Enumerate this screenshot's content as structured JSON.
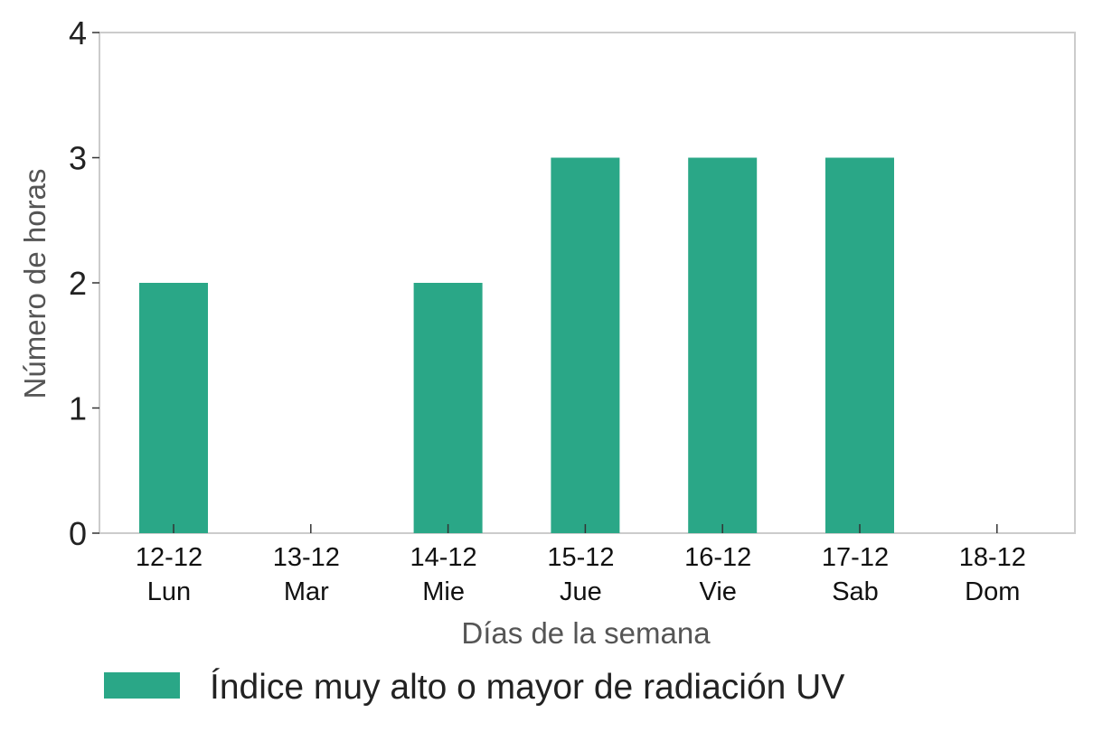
{
  "chart_data": {
    "type": "bar",
    "categories": [
      {
        "date": "12-12",
        "day": "Lun"
      },
      {
        "date": "13-12",
        "day": "Mar"
      },
      {
        "date": "14-12",
        "day": "Mie"
      },
      {
        "date": "15-12",
        "day": "Jue"
      },
      {
        "date": "16-12",
        "day": "Vie"
      },
      {
        "date": "17-12",
        "day": "Sab"
      },
      {
        "date": "18-12",
        "day": "Dom"
      }
    ],
    "series": [
      {
        "name": "Índice muy alto o mayor de radiación UV",
        "color": "#2aa787",
        "values": [
          2,
          0,
          2,
          3,
          3,
          3,
          0
        ]
      }
    ],
    "xlabel": "Días de la semana",
    "ylabel": "Número de horas",
    "ylim": [
      0,
      4
    ],
    "yticks": [
      0,
      1,
      2,
      3,
      4
    ],
    "grid": false,
    "legend_position": "bottom"
  }
}
